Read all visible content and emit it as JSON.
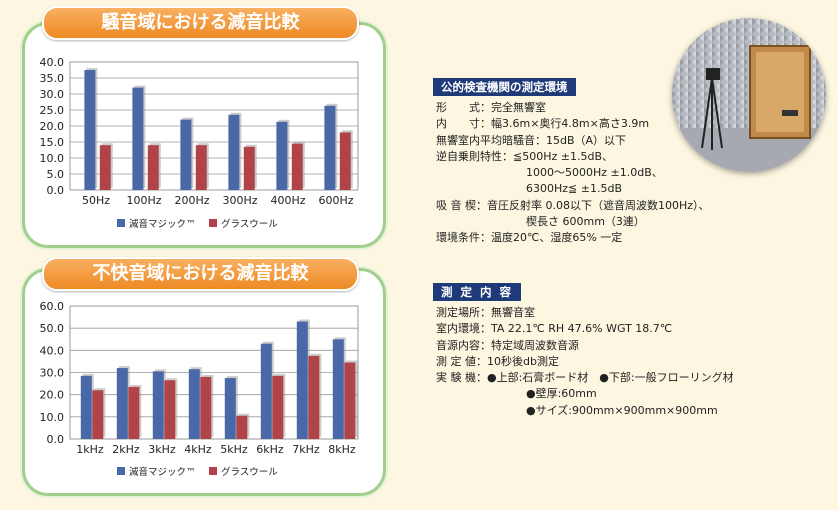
{
  "colors": {
    "series1": "#4a68a8",
    "series2": "#b04448"
  },
  "chart1": {
    "title": "騒音域における減音比較",
    "legend": [
      "減音マジック™",
      "グラスウール"
    ]
  },
  "chart2": {
    "title": "不快音域における減音比較",
    "legend": [
      "減音マジック™",
      "グラスウール"
    ]
  },
  "chart_data": [
    {
      "type": "bar",
      "title": "騒音域における減音比較",
      "categories": [
        "50Hz",
        "100Hz",
        "200Hz",
        "300Hz",
        "400Hz",
        "600Hz"
      ],
      "yticks": [
        "0.0",
        "5.0",
        "10.0",
        "15.0",
        "20.0",
        "25.0",
        "30.0",
        "35.0",
        "40.0"
      ],
      "ylim": [
        0,
        40
      ],
      "grid": true,
      "legend_position": "bottom",
      "series": [
        {
          "name": "減音マジック™",
          "values": [
            37.5,
            32,
            22,
            23.5,
            21.3,
            26.3
          ]
        },
        {
          "name": "グラスウール",
          "values": [
            14,
            14,
            14,
            13.5,
            14.5,
            18
          ]
        }
      ]
    },
    {
      "type": "bar",
      "title": "不快音域における減音比較",
      "categories": [
        "1kHz",
        "2kHz",
        "3kHz",
        "4kHz",
        "5kHz",
        "6kHz",
        "7kHz",
        "8kHz"
      ],
      "yticks": [
        "0.0",
        "10.0",
        "20.0",
        "30.0",
        "40.0",
        "50.0",
        "60.0"
      ],
      "ylim": [
        0,
        60
      ],
      "grid": true,
      "legend_position": "bottom",
      "series": [
        {
          "name": "減音マジック™",
          "values": [
            28.5,
            32,
            30.5,
            31.5,
            27.5,
            43,
            53,
            45
          ]
        },
        {
          "name": "グラスウール",
          "values": [
            22,
            23.5,
            26.5,
            28,
            10.5,
            28.5,
            37.5,
            34.5
          ]
        }
      ]
    }
  ],
  "photo": {
    "icon": "anechoic-chamber-photo"
  },
  "section1": {
    "heading": "公的検査機関の測定環境",
    "rows": [
      {
        "k": "形　　式",
        "v": "：完全無響室"
      },
      {
        "k": "内　　寸",
        "v": "：幅3.6m×奥行4.8m×高さ3.9m"
      },
      {
        "k": "無響室内平均暗騒音",
        "v": "：15dB（A）以下"
      },
      {
        "k": "逆自乗則特性",
        "v": "：≦500Hz ±1.5dB、"
      },
      {
        "k": "",
        "v": "1000〜5000Hz ±1.0dB、"
      },
      {
        "k": "",
        "v": "6300Hz≦ ±1.5dB"
      },
      {
        "k": "吸 音 楔",
        "v": "：音圧反射率 0.08以下（遮音周波数100Hz）、"
      },
      {
        "k": "",
        "v": "楔長さ 600mm（3連）"
      },
      {
        "k": "環境条件",
        "v": "：温度20℃、湿度65% 一定"
      }
    ]
  },
  "section2": {
    "heading": "測 定 内 容",
    "rows": [
      {
        "k": "測定場所",
        "v": "：無響音室"
      },
      {
        "k": "室内環境",
        "v": "：TA 22.1℃ RH 47.6% WGT 18.7℃"
      },
      {
        "k": "音源内容",
        "v": "：特定域周波数音源"
      },
      {
        "k": "測 定 値",
        "v": "：10秒後db測定"
      },
      {
        "k": "実 験 機",
        "v": "：●上部:石膏ボード材　●下部:一般フローリング材"
      },
      {
        "k": "",
        "v": "●壁厚:60mm"
      },
      {
        "k": "",
        "v": "●サイズ:900mm×900mm×900mm"
      }
    ]
  }
}
